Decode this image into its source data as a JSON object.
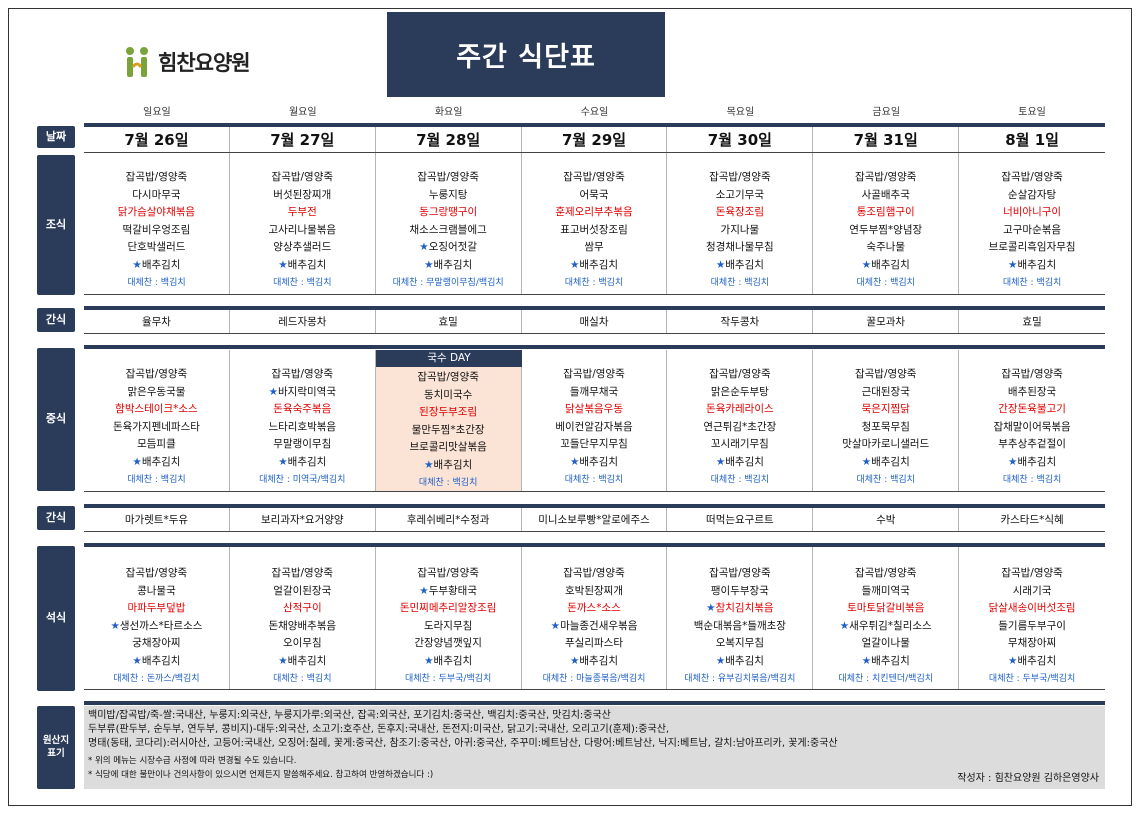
{
  "logo_text": "힘찬요양원",
  "title": "주간 식단표",
  "weekdays": [
    "일요일",
    "월요일",
    "화요일",
    "수요일",
    "목요일",
    "금요일",
    "토요일"
  ],
  "dates": [
    "7월 26일",
    "7월 27일",
    "7월 28일",
    "7월 29일",
    "7월 30일",
    "7월 31일",
    "8월 1일"
  ],
  "labels": {
    "date": "날짜",
    "breakfast": "조식",
    "snack1": "간식",
    "lunch": "중식",
    "snack2": "간식",
    "dinner": "석식",
    "origin": "원산지 표기"
  },
  "breakfast": [
    {
      "items": [
        "잡곡밥/영양죽",
        "다시마무국",
        "닭가슴살야채볶음",
        "떡갈비우엉조림",
        "단호박샐러드",
        "★배추김치"
      ],
      "sub": "대체찬 : 백김치"
    },
    {
      "items": [
        "잡곡밥/영양죽",
        "버섯된장찌개",
        "두부전",
        "고사리나물볶음",
        "양상추샐러드",
        "★배추김치"
      ],
      "sub": "대체찬 : 백김치"
    },
    {
      "items": [
        "잡곡밥/영양죽",
        "누룽지탕",
        "동그랑땡구이",
        "채소스크램블에그",
        "★오징어젓갈",
        "★배추김치"
      ],
      "sub": "대체찬 : 무말랭이무침/백김치"
    },
    {
      "items": [
        "잡곡밥/영양죽",
        "어묵국",
        "훈제오리부추볶음",
        "표고버섯장조림",
        "쌈무",
        "★배추김치"
      ],
      "sub": "대체찬 : 백김치"
    },
    {
      "items": [
        "잡곡밥/영양죽",
        "소고기무국",
        "돈육장조림",
        "가지나물",
        "청경채나물무침",
        "★배추김치"
      ],
      "sub": "대체찬 : 백김치"
    },
    {
      "items": [
        "잡곡밥/영양죽",
        "사골배추국",
        "통조림햄구이",
        "연두부찜*양념장",
        "숙주나물",
        "★배추김치"
      ],
      "sub": "대체찬 : 백김치"
    },
    {
      "items": [
        "잡곡밥/영양죽",
        "순살감자탕",
        "너비아니구이",
        "고구마순볶음",
        "브로콜리흑임자무침",
        "★배추김치"
      ],
      "sub": "대체찬 : 백김치"
    }
  ],
  "breakfast_red_index": 2,
  "snack1": [
    "율무차",
    "레드자몽차",
    "효밀",
    "매실차",
    "작두콩차",
    "꿀모과차",
    "효밀"
  ],
  "lunch_banner": "국수 DAY",
  "lunch": [
    {
      "items": [
        "잡곡밥/영양죽",
        "맑은우동국물",
        "함박스테이크*소스",
        "돈육가지펜네파스타",
        "모듬피클",
        "★배추김치"
      ],
      "sub": "대체찬 : 백김치"
    },
    {
      "items": [
        "잡곡밥/영양죽",
        "★바지락미역국",
        "돈육숙주볶음",
        "느타리호박볶음",
        "무말랭이무침",
        "★배추김치"
      ],
      "sub": "대체찬 : 미역국/백김치"
    },
    {
      "items": [
        "잡곡밥/영양죽",
        "동치미국수",
        "된장두부조림",
        "물만두찜*초간장",
        "브로콜리맛살볶음",
        "★배추김치"
      ],
      "sub": "대체찬 : 백김치"
    },
    {
      "items": [
        "잡곡밥/영양죽",
        "들깨무채국",
        "닭살볶음우동",
        "베이컨알감자볶음",
        "꼬들단무지무침",
        "★배추김치"
      ],
      "sub": "대체찬 : 백김치"
    },
    {
      "items": [
        "잡곡밥/영양죽",
        "맑은순두부탕",
        "돈육카레라이스",
        "연근튀김*초간장",
        "꼬시래기무침",
        "★배추김치"
      ],
      "sub": "대체찬 : 백김치"
    },
    {
      "items": [
        "잡곡밥/영양죽",
        "근대된장국",
        "묵은지찜닭",
        "청포묵무침",
        "맛살마카로니샐러드",
        "★배추김치"
      ],
      "sub": "대체찬 : 백김치"
    },
    {
      "items": [
        "잡곡밥/영양죽",
        "배추된장국",
        "간장돈육불고기",
        "잡채말이어묵볶음",
        "부추상추겉절이",
        "★배추김치"
      ],
      "sub": "대체찬 : 백김치"
    }
  ],
  "snack2": [
    "마가렛트*두유",
    "보리과자*요거양양",
    "후레쉬베리*수정과",
    "미니소보루빵*알로에주스",
    "떠먹는요구르트",
    "수박",
    "카스타드*식혜"
  ],
  "dinner": [
    {
      "items": [
        "잡곡밥/영양죽",
        "콩나물국",
        "마파두부덮밥",
        "★생선까스*타르소스",
        "궁채장아찌",
        "★배추김치"
      ],
      "sub": "대체찬 : 돈까스/백김치"
    },
    {
      "items": [
        "잡곡밥/영양죽",
        "얼갈이된장국",
        "산적구이",
        "돈채양배추볶음",
        "오이무침",
        "★배추김치"
      ],
      "sub": "대체찬 : 백김치"
    },
    {
      "items": [
        "잡곡밥/영양죽",
        "★두부황태국",
        "돈민찌메추리알장조림",
        "도라지무침",
        "간장양념깻잎지",
        "★배추김치"
      ],
      "sub": "대체찬 : 두부국/백김치"
    },
    {
      "items": [
        "잡곡밥/영양죽",
        "호박된장찌개",
        "돈까스*소스",
        "★마늘종건새우볶음",
        "푸실리파스타",
        "★배추김치"
      ],
      "sub": "대체찬 : 마늘종볶음/백김치"
    },
    {
      "items": [
        "잡곡밥/영양죽",
        "팽이두부장국",
        "★참치김치볶음",
        "백순대볶음*들깨초장",
        "오복지무침",
        "★배추김치"
      ],
      "sub": "대체찬 : 유부김치볶음/백김치"
    },
    {
      "items": [
        "잡곡밥/영양죽",
        "들깨미역국",
        "토마토닭갈비볶음",
        "★새우튀김*칠리소스",
        "얼갈이나물",
        "★배추김치"
      ],
      "sub": "대체찬 : 치킨텐더/백김치"
    },
    {
      "items": [
        "잡곡밥/영양죽",
        "시래기국",
        "닭살새송이버섯조림",
        "들기름두부구이",
        "무채장아찌",
        "★배추김치"
      ],
      "sub": "대체찬 : 두부국/백김치"
    }
  ],
  "origin": {
    "line1": "백미밥/잡곡밥/죽-쌀:국내산, 누룽지:외국산, 누룽지가루:외국산, 잡곡:외국산, 포기김치:중국산, 백김치:중국산, 맛김치:중국산",
    "line2": "두부류(판두부, 순두부, 연두부, 콩비지)-대두:외국산, 소고기:호주산, 돈후지:국내산, 돈전지:미국산, 닭고기:국내산, 오리고기(훈제):중국산,",
    "line3": "명태(동태, 코다리):러시아산, 고등어:국내산, 오징어:칠레, 꽃게:중국산, 참조기:중국산, 아귀:중국산, 주꾸미:베트남산, 다랑어:베트남산, 낙지:베트남, 갈치:남아프리카, 꽃게:중국산",
    "note1": "* 위의 메뉴는 시장수급 사정에 따라 변경될 수도 있습니다.",
    "note2": "* 식당에 대한 불만이나 건의사항이 있으시면 언제든지 말씀해주세요. 참고하여 반영하겠습니다 :)",
    "author": "작성자 : 힘찬요양원 김하은영양사"
  },
  "colors": {
    "navy": "#2b3b5a",
    "highlight": "#fbe3d6",
    "red": "#e00000",
    "blue": "#1f60c8"
  }
}
